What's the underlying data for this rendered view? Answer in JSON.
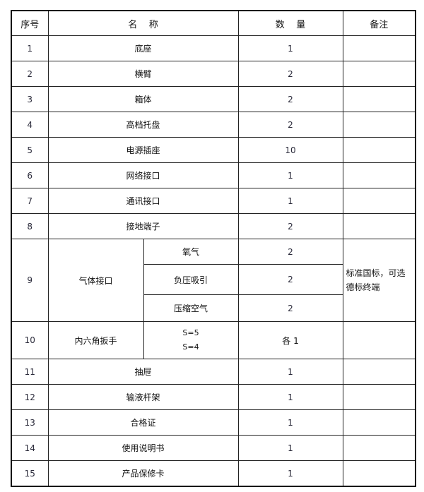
{
  "header": {
    "no": "序号",
    "name": "名    称",
    "qty": "数    量",
    "remark": "备注"
  },
  "rows": [
    {
      "no": "1",
      "name": "底座",
      "qty": "1"
    },
    {
      "no": "2",
      "name": "横臂",
      "qty": "2"
    },
    {
      "no": "3",
      "name": "箱体",
      "qty": "2"
    },
    {
      "no": "4",
      "name": "高档托盘",
      "qty": "2"
    },
    {
      "no": "5",
      "name": "电源插座",
      "qty": "10"
    },
    {
      "no": "6",
      "name": "网络接口",
      "qty": "1"
    },
    {
      "no": "7",
      "name": "通讯接口",
      "qty": "1"
    },
    {
      "no": "8",
      "name": "接地端子",
      "qty": "2"
    }
  ],
  "gas": {
    "no": "9",
    "name": "气体接口",
    "items": [
      {
        "name": "氧气",
        "qty": "2"
      },
      {
        "name": "负压吸引",
        "qty": "2"
      },
      {
        "name": "压缩空气",
        "qty": "2"
      }
    ],
    "remark": "标准国标，可选德标终端"
  },
  "wrench": {
    "no": "10",
    "name": "内六角扳手",
    "specs": [
      "S=5",
      "S=4"
    ],
    "qty": "各 1"
  },
  "rows2": [
    {
      "no": "11",
      "name": "抽屉",
      "qty": "1"
    },
    {
      "no": "12",
      "name": "输液杆架",
      "qty": "1"
    },
    {
      "no": "13",
      "name": "合格证",
      "qty": "1"
    },
    {
      "no": "14",
      "name": "使用说明书",
      "qty": "1"
    },
    {
      "no": "15",
      "name": "产品保修卡",
      "qty": "1"
    }
  ]
}
